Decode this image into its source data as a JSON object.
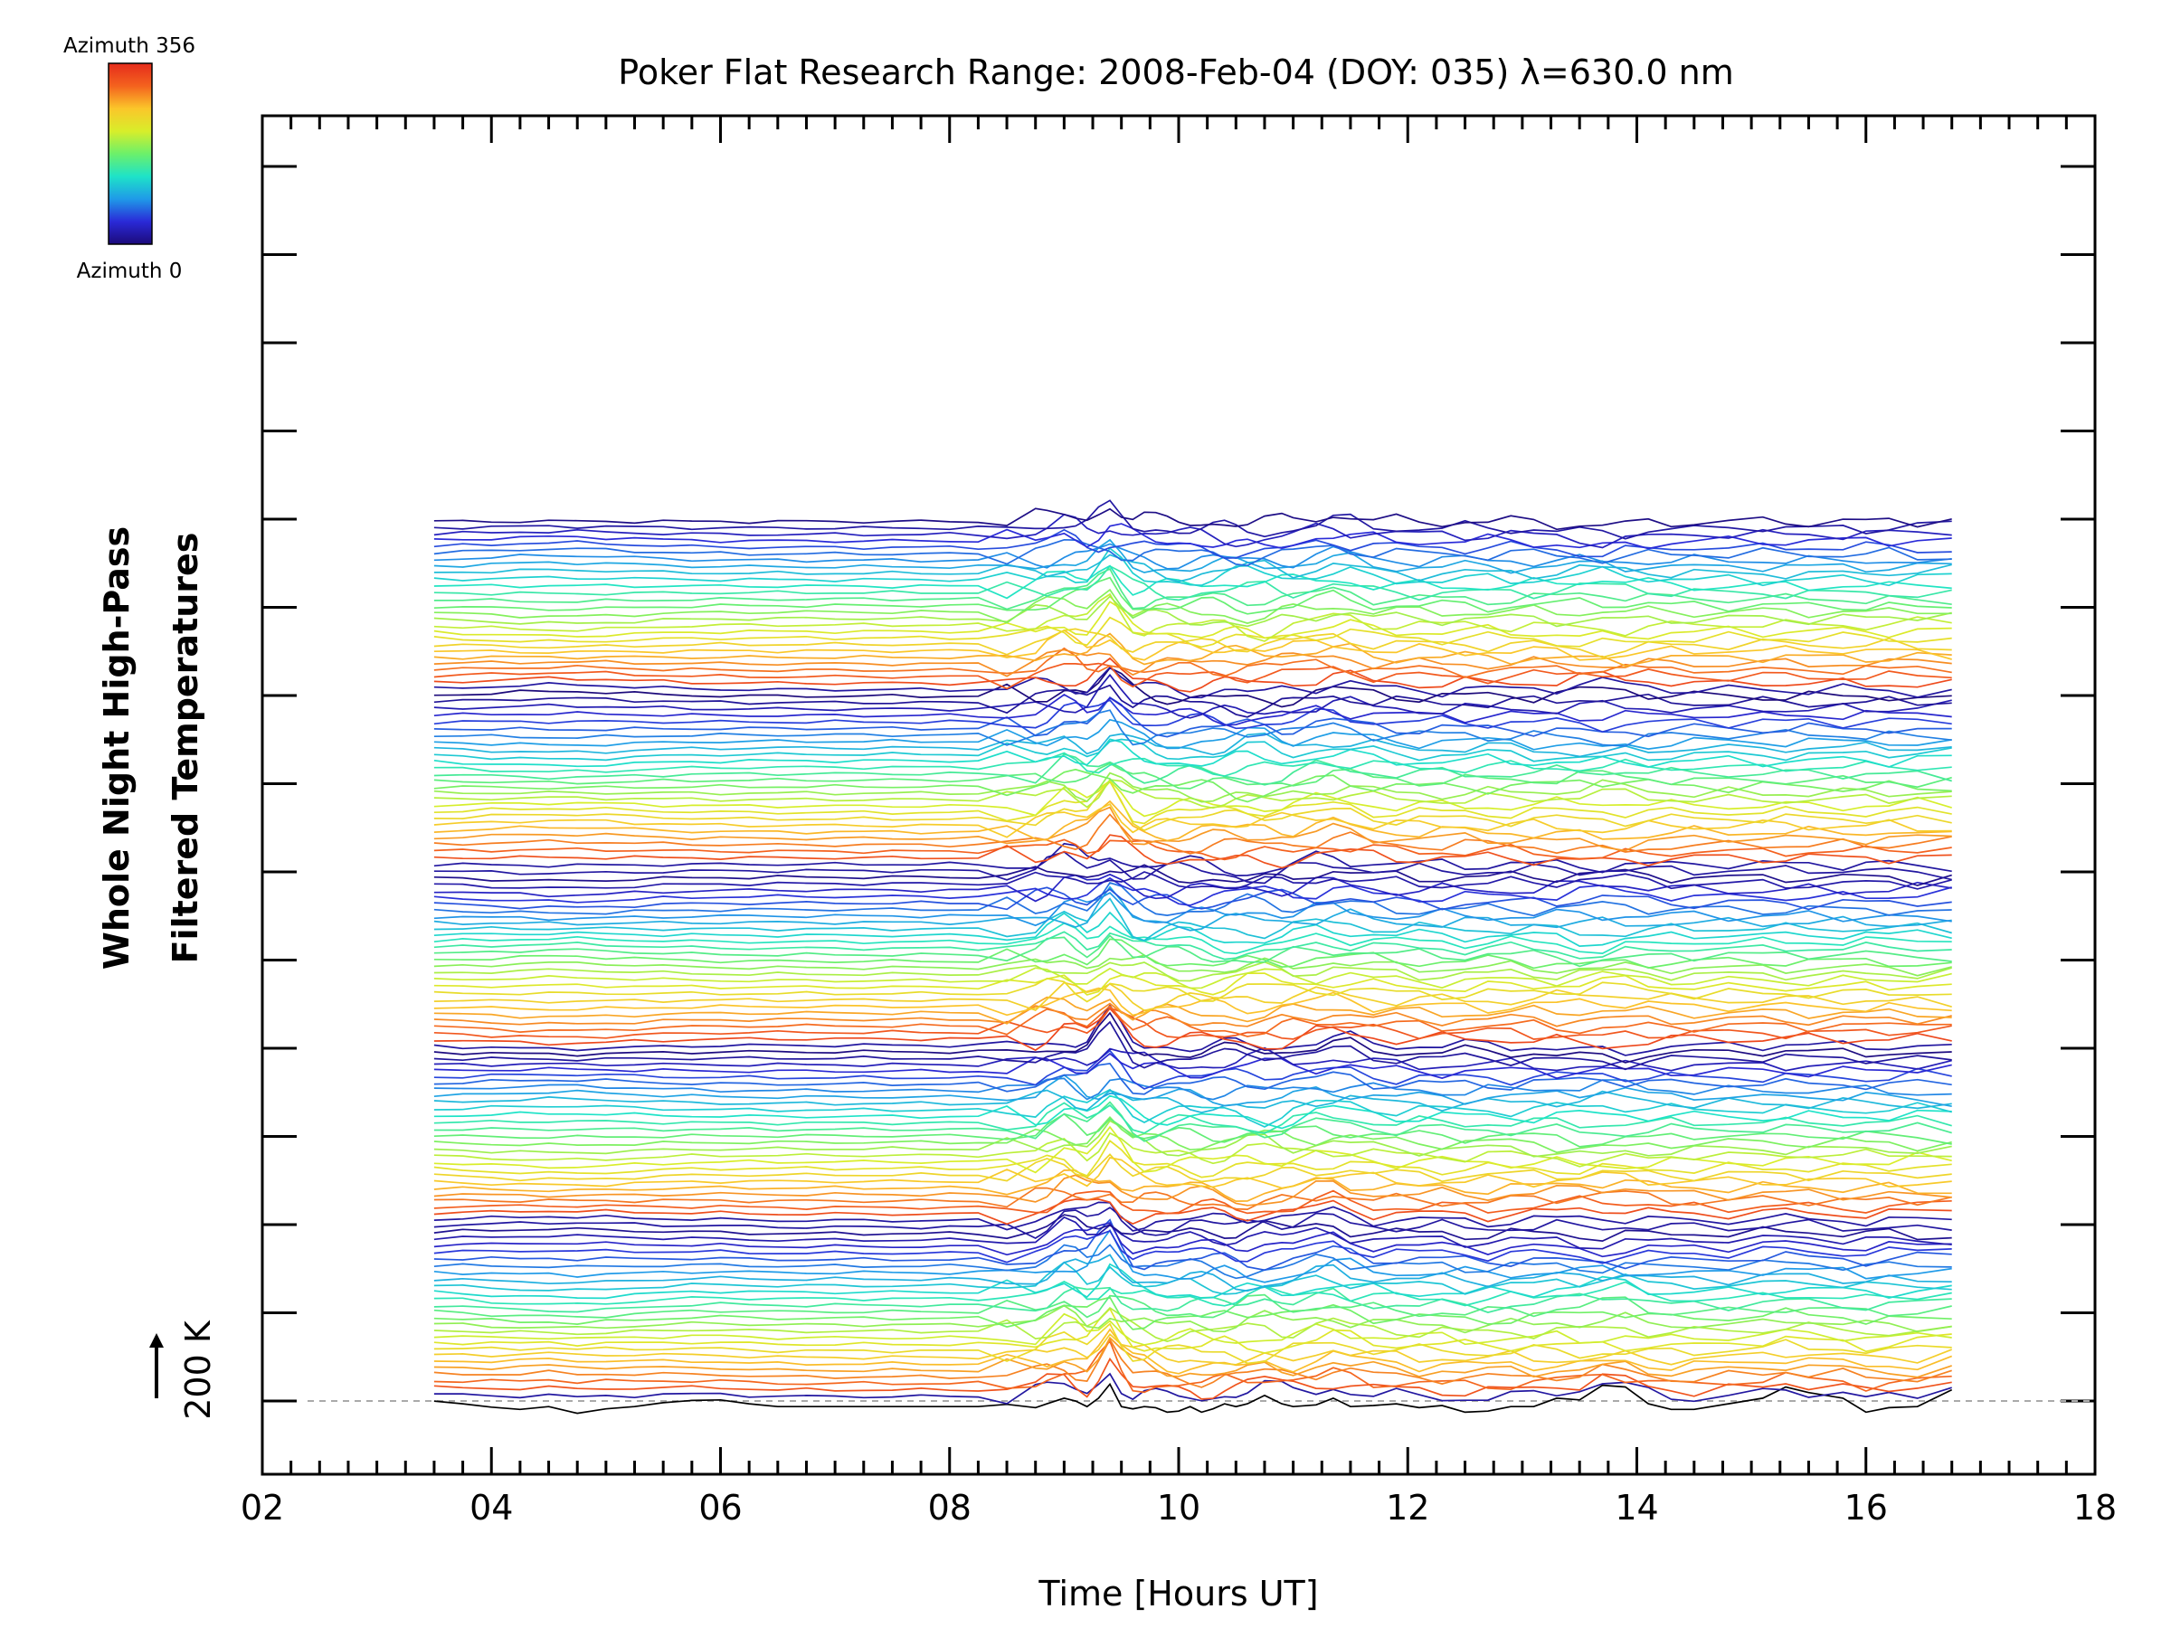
{
  "chart_data": {
    "type": "line",
    "title": "Poker Flat Research Range: 2008-Feb-04 (DOY: 035) λ=630.0 nm",
    "xlabel": "Time [Hours UT]",
    "ylabel_lines": [
      "Whole Night High-Pass",
      "Filtered Temperatures"
    ],
    "xlim": [
      2,
      18
    ],
    "x_tick_labels": [
      "02",
      "04",
      "06",
      "08",
      "10",
      "12",
      "14",
      "16",
      "18"
    ],
    "y_ticks_labelled": false,
    "grid": false,
    "scale_bar": {
      "label": "200 K",
      "value_k": 200
    },
    "baseline_dashed": true,
    "colorbar": {
      "top_label": "Azimuth 356",
      "bottom_label": "Azimuth 0",
      "colormap": "rainbow",
      "colors": [
        "#1c0a7a",
        "#2a2ad8",
        "#1f9ae8",
        "#1ee3c8",
        "#6cf06a",
        "#d8ee2a",
        "#fbc62a",
        "#f4621e",
        "#e52c1c"
      ]
    },
    "stack": {
      "n_series": 137,
      "time_range_hours": [
        3.5,
        16.75
      ],
      "sample_times": [
        3.5,
        3.75,
        4.0,
        4.25,
        4.5,
        4.75,
        5.0,
        5.25,
        5.5,
        5.75,
        6.0,
        6.25,
        6.5,
        6.75,
        7.0,
        7.25,
        7.5,
        7.75,
        8.0,
        8.25,
        8.5,
        8.75,
        8.85,
        9.0,
        9.1,
        9.2,
        9.3,
        9.4,
        9.5,
        9.6,
        9.7,
        9.8,
        9.9,
        10.0,
        10.1,
        10.2,
        10.3,
        10.4,
        10.5,
        10.6,
        10.75,
        10.9,
        11.0,
        11.2,
        11.35,
        11.5,
        11.7,
        11.9,
        12.1,
        12.3,
        12.5,
        12.7,
        12.9,
        13.1,
        13.3,
        13.5,
        13.7,
        13.9,
        14.1,
        14.3,
        14.5,
        14.8,
        15.1,
        15.3,
        15.5,
        15.8,
        16.0,
        16.2,
        16.45,
        16.75
      ],
      "bottom_trace_kelvin": [
        -0.4,
        -10.0,
        -22.0,
        -30.0,
        -20.0,
        -44.0,
        -28.0,
        -20.0,
        -6.0,
        2.0,
        4.0,
        -10.0,
        -20.0,
        -20.0,
        -20.0,
        -20.0,
        -20.0,
        -20.0,
        -20.0,
        -20.0,
        -12.0,
        -24.0,
        -10.0,
        10.0,
        0.0,
        -20.0,
        10.0,
        60.0,
        -20.0,
        -28.0,
        -20.0,
        -24.0,
        -40.0,
        -36.0,
        -20.0,
        -40.0,
        -28.0,
        -10.0,
        -20.0,
        -10.0,
        20.0,
        -10.0,
        -20.0,
        -14.0,
        10.0,
        -20.0,
        -16.0,
        -10.0,
        -24.0,
        -16.0,
        -40.0,
        -36.0,
        -20.0,
        -20.0,
        10.0,
        4.0,
        56.0,
        50.0,
        -10.0,
        -30.0,
        -30.0,
        -10.0,
        10.0,
        50.0,
        30.0,
        10.0,
        -40.0,
        -24.0,
        -20.0,
        40.0
      ]
    }
  }
}
